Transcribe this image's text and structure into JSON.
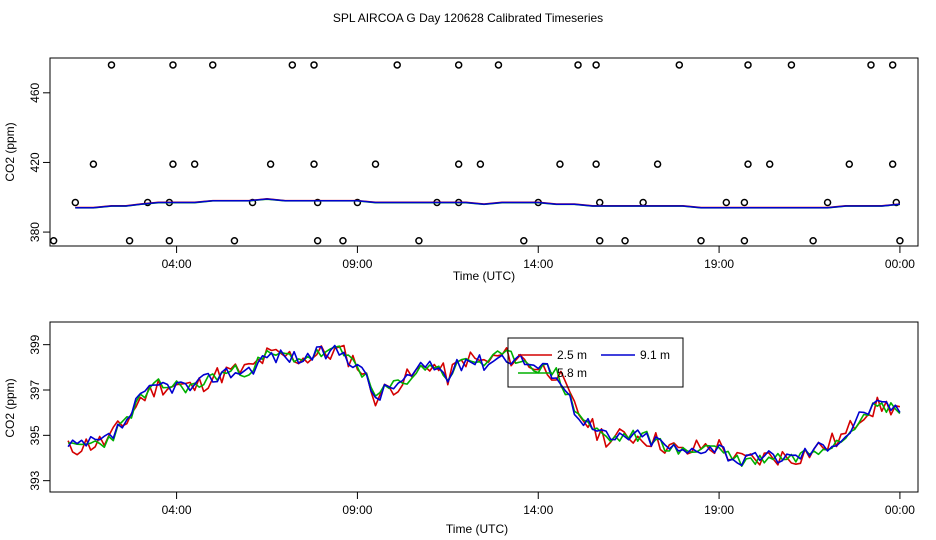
{
  "title": "SPL AIRCOA G  Day 120628  Calibrated Timeseries",
  "chart_data": [
    {
      "type": "line",
      "xlabel": "Time (UTC)",
      "ylabel": "CO2 (ppm)",
      "ylim": [
        372,
        480
      ],
      "xlim_hours": [
        0.5,
        24.5
      ],
      "xticks": [
        {
          "v": 4,
          "label": "04:00"
        },
        {
          "v": 9,
          "label": "09:00"
        },
        {
          "v": 14,
          "label": "14:00"
        },
        {
          "v": 19,
          "label": "19:00"
        },
        {
          "v": 24,
          "label": "00:00"
        }
      ],
      "yticks": [
        {
          "v": 380,
          "label": "380"
        },
        {
          "v": 420,
          "label": "420"
        },
        {
          "v": 460,
          "label": "460"
        }
      ],
      "series": [
        {
          "color": "#d40000",
          "offset": 0.1
        },
        {
          "color": "#00b000",
          "offset": -0.1
        },
        {
          "color": "#0000d0",
          "offset": 0.0
        }
      ],
      "x": [
        1.2,
        1.7,
        2.2,
        2.6,
        3.0,
        3.5,
        4.0,
        4.5,
        5.0,
        5.5,
        6.0,
        6.5,
        7.0,
        7.5,
        8.0,
        8.5,
        9.0,
        9.5,
        10.0,
        10.5,
        11.0,
        11.5,
        12.0,
        12.5,
        13.0,
        13.5,
        14.0,
        14.5,
        15.0,
        15.5,
        16.0,
        16.5,
        17.0,
        17.5,
        18.0,
        18.5,
        19.0,
        19.5,
        20.0,
        20.5,
        21.0,
        21.5,
        22.0,
        22.5,
        23.0,
        23.5,
        24.0
      ],
      "y": [
        394,
        394,
        395,
        395,
        396,
        397,
        397,
        397,
        398,
        398,
        398,
        399,
        398,
        398,
        398,
        398,
        398,
        397,
        397,
        397,
        397,
        397,
        397,
        396,
        397,
        397,
        397,
        396,
        396,
        395,
        395,
        395,
        395,
        395,
        395,
        394,
        394,
        394,
        394,
        394,
        394,
        394,
        394,
        395,
        395,
        395,
        396
      ],
      "scatter": [
        {
          "x": 2.2,
          "y": 476
        },
        {
          "x": 3.9,
          "y": 476
        },
        {
          "x": 5.0,
          "y": 476
        },
        {
          "x": 7.2,
          "y": 476
        },
        {
          "x": 7.8,
          "y": 476
        },
        {
          "x": 10.1,
          "y": 476
        },
        {
          "x": 11.8,
          "y": 476
        },
        {
          "x": 12.9,
          "y": 476
        },
        {
          "x": 15.1,
          "y": 476
        },
        {
          "x": 15.6,
          "y": 476
        },
        {
          "x": 17.9,
          "y": 476
        },
        {
          "x": 19.8,
          "y": 476
        },
        {
          "x": 21.0,
          "y": 476
        },
        {
          "x": 23.2,
          "y": 476
        },
        {
          "x": 23.8,
          "y": 476
        },
        {
          "x": 1.7,
          "y": 419
        },
        {
          "x": 3.9,
          "y": 419
        },
        {
          "x": 4.5,
          "y": 419
        },
        {
          "x": 6.6,
          "y": 419
        },
        {
          "x": 7.8,
          "y": 419
        },
        {
          "x": 9.5,
          "y": 419
        },
        {
          "x": 11.8,
          "y": 419
        },
        {
          "x": 12.4,
          "y": 419
        },
        {
          "x": 14.6,
          "y": 419
        },
        {
          "x": 15.6,
          "y": 419
        },
        {
          "x": 17.3,
          "y": 419
        },
        {
          "x": 19.8,
          "y": 419
        },
        {
          "x": 20.4,
          "y": 419
        },
        {
          "x": 22.6,
          "y": 419
        },
        {
          "x": 23.8,
          "y": 419
        },
        {
          "x": 1.2,
          "y": 397
        },
        {
          "x": 3.2,
          "y": 397
        },
        {
          "x": 3.8,
          "y": 397
        },
        {
          "x": 6.1,
          "y": 397
        },
        {
          "x": 7.9,
          "y": 397
        },
        {
          "x": 9.0,
          "y": 397
        },
        {
          "x": 11.2,
          "y": 397
        },
        {
          "x": 11.8,
          "y": 397
        },
        {
          "x": 14.0,
          "y": 397
        },
        {
          "x": 15.7,
          "y": 397
        },
        {
          "x": 16.9,
          "y": 397
        },
        {
          "x": 19.2,
          "y": 397
        },
        {
          "x": 19.7,
          "y": 397
        },
        {
          "x": 22.0,
          "y": 397
        },
        {
          "x": 23.9,
          "y": 397
        },
        {
          "x": 0.6,
          "y": 375
        },
        {
          "x": 2.7,
          "y": 375
        },
        {
          "x": 3.8,
          "y": 375
        },
        {
          "x": 5.6,
          "y": 375
        },
        {
          "x": 7.9,
          "y": 375
        },
        {
          "x": 8.6,
          "y": 375
        },
        {
          "x": 10.7,
          "y": 375
        },
        {
          "x": 13.6,
          "y": 375
        },
        {
          "x": 15.7,
          "y": 375
        },
        {
          "x": 16.4,
          "y": 375
        },
        {
          "x": 18.5,
          "y": 375
        },
        {
          "x": 19.7,
          "y": 375
        },
        {
          "x": 21.6,
          "y": 375
        },
        {
          "x": 24.0,
          "y": 375
        }
      ]
    },
    {
      "type": "line",
      "xlabel": "Time (UTC)",
      "ylabel": "CO2 (ppm)",
      "ylim": [
        392.5,
        400.0
      ],
      "xlim_hours": [
        0.5,
        24.5
      ],
      "xticks": [
        {
          "v": 4,
          "label": "04:00"
        },
        {
          "v": 9,
          "label": "09:00"
        },
        {
          "v": 14,
          "label": "14:00"
        },
        {
          "v": 19,
          "label": "19:00"
        },
        {
          "v": 24,
          "label": "00:00"
        }
      ],
      "yticks": [
        {
          "v": 393,
          "label": "393"
        },
        {
          "v": 395,
          "label": "395"
        },
        {
          "v": 397,
          "label": "397"
        },
        {
          "v": 399,
          "label": "399"
        }
      ],
      "legend": [
        {
          "label": "2.5 m",
          "color": "#d40000"
        },
        {
          "label": "9.1 m",
          "color": "#0000d0"
        },
        {
          "label": "5.8 m",
          "color": "#00b000"
        }
      ],
      "series": [
        {
          "name": "2.5 m",
          "color": "#d40000",
          "seed": 11,
          "noise": 0.45
        },
        {
          "name": "5.8 m",
          "color": "#00b000",
          "seed": 23,
          "noise": 0.3
        },
        {
          "name": "9.1 m",
          "color": "#0000d0",
          "seed": 37,
          "noise": 0.35
        }
      ],
      "x": [
        1.0,
        1.5,
        2.0,
        2.5,
        3.0,
        3.5,
        4.0,
        4.5,
        5.0,
        5.5,
        6.0,
        6.5,
        7.0,
        7.5,
        8.0,
        8.5,
        9.0,
        9.5,
        10.0,
        10.5,
        11.0,
        11.5,
        12.0,
        12.5,
        13.0,
        13.5,
        14.0,
        14.5,
        15.0,
        15.5,
        16.0,
        16.5,
        17.0,
        17.5,
        18.0,
        18.5,
        19.0,
        19.5,
        20.0,
        20.5,
        21.0,
        21.5,
        22.0,
        22.5,
        23.0,
        23.5,
        24.0
      ],
      "y": [
        394.4,
        394.6,
        394.7,
        395.4,
        396.6,
        397.2,
        397.2,
        397.1,
        397.6,
        397.8,
        397.9,
        398.5,
        398.5,
        398.4,
        398.6,
        398.7,
        398.2,
        396.7,
        397.2,
        397.6,
        398.2,
        397.6,
        398.4,
        398.2,
        398.5,
        398.4,
        398.0,
        397.8,
        396.2,
        395.3,
        394.8,
        395.0,
        394.9,
        394.6,
        394.2,
        394.5,
        394.5,
        393.9,
        393.9,
        394.1,
        394.0,
        394.3,
        394.6,
        395.0,
        396.1,
        396.3,
        396.2
      ]
    }
  ]
}
